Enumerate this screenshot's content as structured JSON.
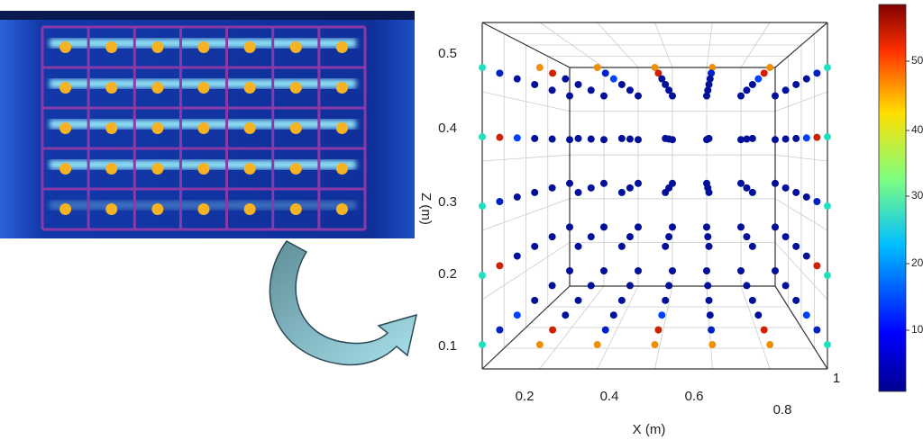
{
  "figure": {
    "z_axis": {
      "label": "Z (m)",
      "ticks": [
        "0.1",
        "0.2",
        "0.3",
        "0.4",
        "0.5"
      ]
    },
    "x_axis": {
      "label": "X (m)",
      "ticks": [
        "0.2",
        "0.4",
        "0.6",
        "0.8",
        "1"
      ]
    },
    "colorbar": {
      "ticks": [
        "10",
        "20",
        "30",
        "40",
        "50"
      ]
    }
  }
}
